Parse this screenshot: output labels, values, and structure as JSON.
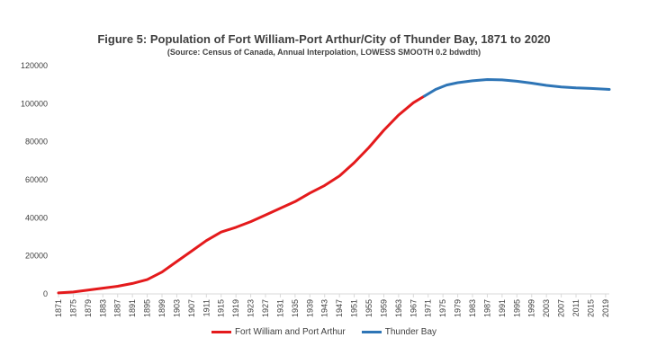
{
  "chart_data": {
    "type": "line",
    "title": "Figure 5: Population of Fort William-Port Arthur/City of Thunder Bay, 1871 to 2020",
    "subtitle": "(Source: Census of Canada, Annual Interpolation, LOWESS SMOOTH 0.2 bdwdth)",
    "xlim": [
      1871,
      2020
    ],
    "ylim": [
      0,
      120000
    ],
    "y_ticks": [
      0,
      20000,
      40000,
      60000,
      80000,
      100000,
      120000
    ],
    "x_ticks": [
      1871,
      1875,
      1879,
      1883,
      1887,
      1891,
      1895,
      1899,
      1903,
      1907,
      1911,
      1915,
      1919,
      1923,
      1927,
      1931,
      1935,
      1939,
      1943,
      1947,
      1951,
      1955,
      1959,
      1963,
      1967,
      1971,
      1975,
      1979,
      1983,
      1987,
      1991,
      1995,
      1999,
      2003,
      2007,
      2011,
      2015,
      2019
    ],
    "grid": false,
    "legend_position": "bottom",
    "series": [
      {
        "name": "Fort William and Port Arthur",
        "color": "#e41a1c",
        "x": [
          1871,
          1875,
          1879,
          1883,
          1887,
          1891,
          1895,
          1899,
          1903,
          1907,
          1911,
          1915,
          1919,
          1923,
          1927,
          1931,
          1935,
          1939,
          1943,
          1947,
          1951,
          1955,
          1959,
          1963,
          1967,
          1970
        ],
        "y": [
          500,
          1000,
          2000,
          3000,
          4000,
          5500,
          7500,
          11500,
          17000,
          22500,
          28000,
          32500,
          35000,
          38000,
          41500,
          45000,
          48500,
          53000,
          57000,
          62000,
          69000,
          77000,
          86000,
          94000,
          100500,
          104000
        ]
      },
      {
        "name": "Thunder Bay",
        "color": "#2e75b6",
        "x": [
          1970,
          1973,
          1976,
          1979,
          1983,
          1987,
          1991,
          1995,
          1999,
          2003,
          2007,
          2011,
          2015,
          2019,
          2020
        ],
        "y": [
          104000,
          107500,
          109800,
          111000,
          112000,
          112700,
          112500,
          111800,
          110800,
          109600,
          108800,
          108300,
          108000,
          107600,
          107500
        ]
      }
    ]
  }
}
